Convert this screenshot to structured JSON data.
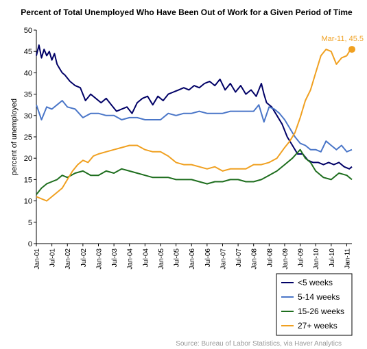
{
  "chart_data": {
    "type": "line",
    "title": "Percent of Total Unemployed Who Have Been Out of Work for a Given Period of Time",
    "ylabel": "percent of unemployed",
    "xlabel": "",
    "ylim": [
      0,
      50
    ],
    "y_ticks": [
      0,
      5,
      10,
      15,
      20,
      25,
      30,
      35,
      40,
      45,
      50
    ],
    "x_range": [
      "2001-01",
      "2011-03"
    ],
    "x_tick_labels": [
      "Jan-01",
      "Jul-01",
      "Jan-02",
      "Jul-02",
      "Jan-03",
      "Jul-03",
      "Jan-04",
      "Jul-04",
      "Jan-05",
      "Jul-05",
      "Jan-06",
      "Jul-06",
      "Jan-07",
      "Jul-07",
      "Jan-08",
      "Jul-08",
      "Jan-09",
      "Jul-09",
      "Jan-10",
      "Jul-10",
      "Jan-11"
    ],
    "grid": false,
    "legend_position": "bottom-right",
    "source": "Source: Bureau of Labor Statistics, via Haver Analytics",
    "annotation": {
      "text": "Mar-11, 45.5",
      "x": "2011-03",
      "y": 45.5,
      "series": "27+ weeks"
    },
    "series": [
      {
        "name": "<5 weeks",
        "color": "#000066",
        "points": [
          [
            "2001-01",
            44.0
          ],
          [
            "2001-02",
            46.5
          ],
          [
            "2001-03",
            43.5
          ],
          [
            "2001-04",
            45.5
          ],
          [
            "2001-05",
            44.0
          ],
          [
            "2001-06",
            45.0
          ],
          [
            "2001-07",
            43.0
          ],
          [
            "2001-08",
            44.5
          ],
          [
            "2001-09",
            42.0
          ],
          [
            "2001-10",
            41.0
          ],
          [
            "2001-11",
            40.0
          ],
          [
            "2001-12",
            39.5
          ],
          [
            "2002-02",
            38.0
          ],
          [
            "2002-04",
            37.0
          ],
          [
            "2002-06",
            36.5
          ],
          [
            "2002-08",
            33.5
          ],
          [
            "2002-10",
            35.0
          ],
          [
            "2002-12",
            34.0
          ],
          [
            "2003-02",
            33.0
          ],
          [
            "2003-04",
            34.0
          ],
          [
            "2003-06",
            32.5
          ],
          [
            "2003-08",
            31.0
          ],
          [
            "2003-10",
            31.5
          ],
          [
            "2003-12",
            32.0
          ],
          [
            "2004-02",
            30.5
          ],
          [
            "2004-04",
            33.0
          ],
          [
            "2004-06",
            34.0
          ],
          [
            "2004-08",
            34.5
          ],
          [
            "2004-10",
            32.5
          ],
          [
            "2004-12",
            34.5
          ],
          [
            "2005-02",
            33.5
          ],
          [
            "2005-04",
            35.0
          ],
          [
            "2005-06",
            35.5
          ],
          [
            "2005-08",
            36.0
          ],
          [
            "2005-10",
            36.5
          ],
          [
            "2005-12",
            36.0
          ],
          [
            "2006-02",
            37.0
          ],
          [
            "2006-04",
            36.5
          ],
          [
            "2006-06",
            37.5
          ],
          [
            "2006-08",
            38.0
          ],
          [
            "2006-10",
            37.0
          ],
          [
            "2006-12",
            38.5
          ],
          [
            "2007-02",
            36.0
          ],
          [
            "2007-04",
            37.5
          ],
          [
            "2007-06",
            35.5
          ],
          [
            "2007-08",
            37.0
          ],
          [
            "2007-10",
            35.0
          ],
          [
            "2007-12",
            36.0
          ],
          [
            "2008-02",
            34.5
          ],
          [
            "2008-04",
            37.5
          ],
          [
            "2008-05",
            35.0
          ],
          [
            "2008-06",
            33.0
          ],
          [
            "2008-08",
            32.0
          ],
          [
            "2008-10",
            30.0
          ],
          [
            "2008-12",
            28.0
          ],
          [
            "2009-02",
            25.0
          ],
          [
            "2009-04",
            23.0
          ],
          [
            "2009-06",
            21.0
          ],
          [
            "2009-08",
            21.0
          ],
          [
            "2009-10",
            19.5
          ],
          [
            "2009-12",
            19.0
          ],
          [
            "2010-02",
            19.0
          ],
          [
            "2010-04",
            18.5
          ],
          [
            "2010-06",
            19.0
          ],
          [
            "2010-08",
            18.5
          ],
          [
            "2010-10",
            19.0
          ],
          [
            "2010-12",
            18.0
          ],
          [
            "2011-02",
            17.5
          ],
          [
            "2011-03",
            18.0
          ]
        ]
      },
      {
        "name": "5-14 weeks",
        "color": "#4a76c8",
        "points": [
          [
            "2001-01",
            32.5
          ],
          [
            "2001-03",
            29.0
          ],
          [
            "2001-05",
            32.0
          ],
          [
            "2001-07",
            31.5
          ],
          [
            "2001-09",
            32.5
          ],
          [
            "2001-11",
            33.5
          ],
          [
            "2002-01",
            32.0
          ],
          [
            "2002-04",
            31.5
          ],
          [
            "2002-07",
            29.5
          ],
          [
            "2002-10",
            30.5
          ],
          [
            "2003-01",
            30.5
          ],
          [
            "2003-04",
            30.0
          ],
          [
            "2003-07",
            30.0
          ],
          [
            "2003-10",
            29.0
          ],
          [
            "2004-01",
            29.5
          ],
          [
            "2004-04",
            29.5
          ],
          [
            "2004-07",
            29.0
          ],
          [
            "2004-10",
            29.0
          ],
          [
            "2005-01",
            29.0
          ],
          [
            "2005-04",
            30.5
          ],
          [
            "2005-07",
            30.0
          ],
          [
            "2005-10",
            30.5
          ],
          [
            "2006-01",
            30.5
          ],
          [
            "2006-04",
            31.0
          ],
          [
            "2006-07",
            30.5
          ],
          [
            "2006-10",
            30.5
          ],
          [
            "2007-01",
            30.5
          ],
          [
            "2007-04",
            31.0
          ],
          [
            "2007-07",
            31.0
          ],
          [
            "2007-10",
            31.0
          ],
          [
            "2008-01",
            31.0
          ],
          [
            "2008-03",
            32.5
          ],
          [
            "2008-05",
            28.5
          ],
          [
            "2008-07",
            32.0
          ],
          [
            "2008-09",
            31.5
          ],
          [
            "2008-11",
            30.5
          ],
          [
            "2009-01",
            29.0
          ],
          [
            "2009-03",
            27.0
          ],
          [
            "2009-05",
            25.0
          ],
          [
            "2009-07",
            23.5
          ],
          [
            "2009-09",
            23.0
          ],
          [
            "2009-11",
            22.0
          ],
          [
            "2010-01",
            22.0
          ],
          [
            "2010-03",
            21.5
          ],
          [
            "2010-05",
            24.0
          ],
          [
            "2010-07",
            23.0
          ],
          [
            "2010-09",
            22.0
          ],
          [
            "2010-11",
            23.0
          ],
          [
            "2011-01",
            21.5
          ],
          [
            "2011-03",
            22.0
          ]
        ]
      },
      {
        "name": "15-26 weeks",
        "color": "#1e6e1e",
        "points": [
          [
            "2001-01",
            11.5
          ],
          [
            "2001-03",
            13.0
          ],
          [
            "2001-05",
            14.0
          ],
          [
            "2001-07",
            14.5
          ],
          [
            "2001-09",
            15.0
          ],
          [
            "2001-11",
            16.0
          ],
          [
            "2002-01",
            15.5
          ],
          [
            "2002-04",
            16.5
          ],
          [
            "2002-07",
            17.0
          ],
          [
            "2002-10",
            16.0
          ],
          [
            "2003-01",
            16.0
          ],
          [
            "2003-04",
            17.0
          ],
          [
            "2003-07",
            16.5
          ],
          [
            "2003-10",
            17.5
          ],
          [
            "2004-01",
            17.0
          ],
          [
            "2004-04",
            16.5
          ],
          [
            "2004-07",
            16.0
          ],
          [
            "2004-10",
            15.5
          ],
          [
            "2005-01",
            15.5
          ],
          [
            "2005-04",
            15.5
          ],
          [
            "2005-07",
            15.0
          ],
          [
            "2005-10",
            15.0
          ],
          [
            "2006-01",
            15.0
          ],
          [
            "2006-04",
            14.5
          ],
          [
            "2006-07",
            14.0
          ],
          [
            "2006-10",
            14.5
          ],
          [
            "2007-01",
            14.5
          ],
          [
            "2007-04",
            15.0
          ],
          [
            "2007-07",
            15.0
          ],
          [
            "2007-10",
            14.5
          ],
          [
            "2008-01",
            14.5
          ],
          [
            "2008-04",
            15.0
          ],
          [
            "2008-07",
            16.0
          ],
          [
            "2008-10",
            17.0
          ],
          [
            "2009-01",
            18.5
          ],
          [
            "2009-04",
            20.0
          ],
          [
            "2009-07",
            22.0
          ],
          [
            "2009-09",
            20.0
          ],
          [
            "2009-11",
            19.0
          ],
          [
            "2010-01",
            17.0
          ],
          [
            "2010-04",
            15.5
          ],
          [
            "2010-07",
            15.0
          ],
          [
            "2010-10",
            16.5
          ],
          [
            "2011-01",
            16.0
          ],
          [
            "2011-03",
            15.0
          ]
        ]
      },
      {
        "name": "27+ weeks",
        "color": "#f0a020",
        "points": [
          [
            "2001-01",
            11.0
          ],
          [
            "2001-03",
            10.5
          ],
          [
            "2001-05",
            10.0
          ],
          [
            "2001-07",
            11.0
          ],
          [
            "2001-09",
            12.0
          ],
          [
            "2001-11",
            13.0
          ],
          [
            "2002-01",
            15.0
          ],
          [
            "2002-03",
            17.0
          ],
          [
            "2002-05",
            18.5
          ],
          [
            "2002-07",
            19.5
          ],
          [
            "2002-09",
            19.0
          ],
          [
            "2002-11",
            20.5
          ],
          [
            "2003-01",
            21.0
          ],
          [
            "2003-04",
            21.5
          ],
          [
            "2003-07",
            22.0
          ],
          [
            "2003-10",
            22.5
          ],
          [
            "2004-01",
            23.0
          ],
          [
            "2004-04",
            23.0
          ],
          [
            "2004-07",
            22.0
          ],
          [
            "2004-10",
            21.5
          ],
          [
            "2005-01",
            21.5
          ],
          [
            "2005-04",
            20.5
          ],
          [
            "2005-07",
            19.0
          ],
          [
            "2005-10",
            18.5
          ],
          [
            "2006-01",
            18.5
          ],
          [
            "2006-04",
            18.0
          ],
          [
            "2006-07",
            17.5
          ],
          [
            "2006-10",
            18.0
          ],
          [
            "2007-01",
            17.0
          ],
          [
            "2007-04",
            17.5
          ],
          [
            "2007-07",
            17.5
          ],
          [
            "2007-10",
            17.5
          ],
          [
            "2008-01",
            18.5
          ],
          [
            "2008-04",
            18.5
          ],
          [
            "2008-07",
            19.0
          ],
          [
            "2008-10",
            20.0
          ],
          [
            "2009-01",
            22.5
          ],
          [
            "2009-03",
            24.0
          ],
          [
            "2009-05",
            26.0
          ],
          [
            "2009-07",
            29.5
          ],
          [
            "2009-09",
            33.5
          ],
          [
            "2009-11",
            36.0
          ],
          [
            "2010-01",
            40.0
          ],
          [
            "2010-03",
            44.0
          ],
          [
            "2010-05",
            45.5
          ],
          [
            "2010-07",
            45.0
          ],
          [
            "2010-09",
            42.0
          ],
          [
            "2010-11",
            43.5
          ],
          [
            "2011-01",
            44.0
          ],
          [
            "2011-02",
            45.0
          ],
          [
            "2011-03",
            45.5
          ]
        ]
      }
    ]
  }
}
